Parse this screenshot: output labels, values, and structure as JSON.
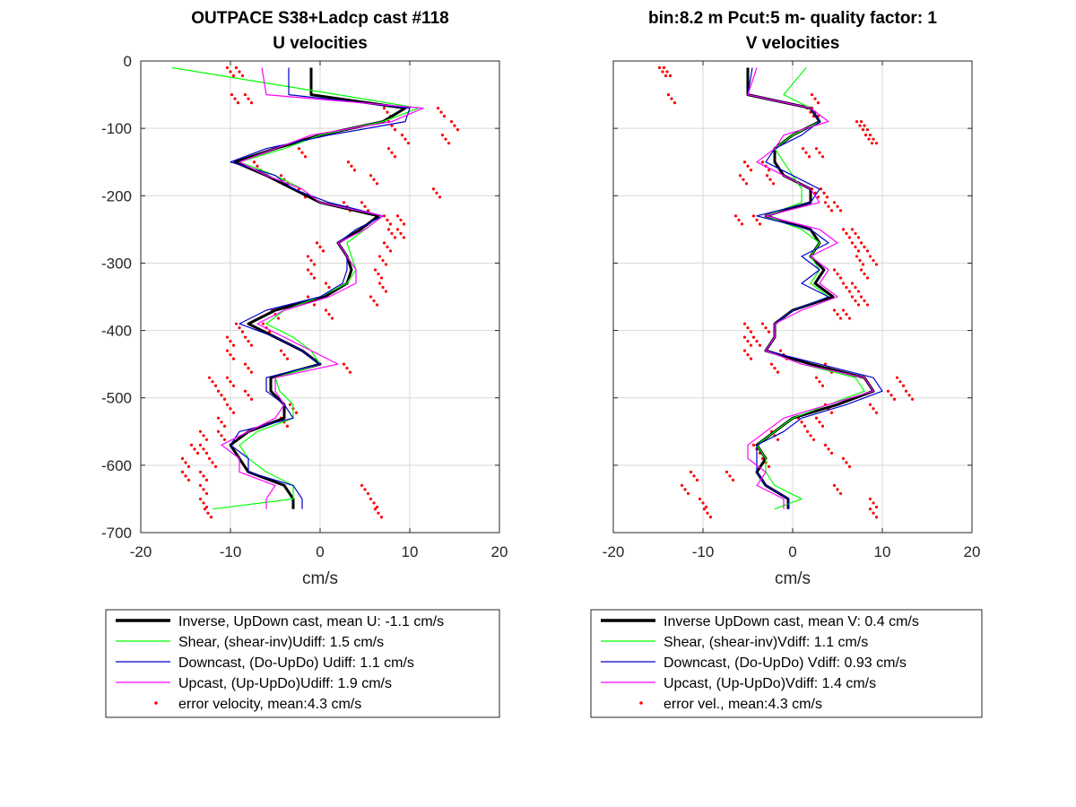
{
  "colors": {
    "inverse": "#000000",
    "shear": "#00ff00",
    "downcast": "#0000c8",
    "upcast": "#ff00ff",
    "error": "#ff0000",
    "grid": "#d9d9d9"
  },
  "chart_data": [
    {
      "type": "line",
      "title": "OUTPACE S38+Ladcp cast #118",
      "subtitle": "U velocities",
      "xlabel": "cm/s",
      "ylabel": "",
      "xlim": [
        -20,
        20
      ],
      "ylim": [
        -700,
        0
      ],
      "xticks": [
        "-20",
        "-10",
        "0",
        "10",
        "20"
      ],
      "yticks": [
        "0",
        "-100",
        "-200",
        "-300",
        "-400",
        "-500",
        "-600",
        "-700"
      ],
      "grid": true,
      "legend_position": "below",
      "depth": [
        -10,
        -50,
        -70,
        -90,
        -110,
        -130,
        -150,
        -170,
        -190,
        -210,
        -230,
        -250,
        -270,
        -290,
        -310,
        -330,
        -350,
        -370,
        -390,
        -410,
        -430,
        -450,
        -470,
        -490,
        -510,
        -530,
        -550,
        -570,
        -590,
        -610,
        -630,
        -650,
        -665
      ],
      "series": [
        {
          "name": "Inverse, UpDown cast, mean U:  -1.1 cm/s",
          "x": [
            -1,
            -1,
            9.5,
            7,
            0,
            -5,
            -9.5,
            -6,
            -3,
            0,
            6.5,
            4.5,
            2,
            3,
            3.5,
            3,
            0.5,
            -5,
            -8,
            -5,
            -2,
            0,
            -5.5,
            -5.5,
            -4,
            -4,
            -8,
            -10,
            -9,
            -8,
            -4,
            -3,
            -3
          ]
        },
        {
          "name": "Shear, (shear-inv)Udiff:  1.5 cm/s",
          "x": [
            -16.5,
            2,
            11,
            7,
            0,
            -4,
            -9,
            -5,
            -2,
            0,
            7,
            5,
            3,
            3.5,
            4,
            3,
            0,
            -4,
            -6,
            -3,
            -1,
            0,
            -5,
            -4.5,
            -3,
            -3,
            -7,
            -9,
            -8,
            -6,
            -3,
            -3,
            -12
          ]
        },
        {
          "name": "Downcast, (Do-UpDo) Udiff:  1.1 cm/s",
          "x": [
            -3.5,
            -3.5,
            10,
            9.5,
            1,
            -6,
            -10,
            -5,
            -3,
            1,
            7,
            4,
            2,
            3,
            3,
            2.5,
            0,
            -6,
            -9,
            -5,
            -2,
            0,
            -6,
            -6,
            -4,
            -3,
            -9,
            -10,
            -8,
            -8,
            -3,
            -2,
            -2
          ]
        },
        {
          "name": "Upcast, (Up-UpDo)Udiff:  1.9 cm/s",
          "x": [
            -6.5,
            -6,
            11.5,
            8,
            -1,
            -5,
            -9,
            -6,
            -2,
            0,
            7,
            5,
            2,
            3,
            4,
            4,
            1,
            -4,
            -7,
            -4,
            -1,
            2,
            -5,
            -5,
            -4,
            -5,
            -8,
            -11,
            -9,
            -9,
            -5,
            -6,
            -6
          ]
        }
      ],
      "error_velocity": {
        "name": "error velocity, mean:4.3 cm/s",
        "x": [
          -9,
          -8,
          7.5,
          8,
          9.5,
          8,
          3.5,
          6,
          13,
          5,
          7.5,
          9,
          7.5,
          7,
          6.5,
          7,
          6,
          1,
          -9,
          -8,
          -10,
          -8,
          -12,
          -11,
          -10,
          -11,
          -13,
          -13,
          -12,
          -13,
          -13,
          -13,
          -12.5
        ],
        "x2": [
          -10,
          -9.5,
          13.5,
          15,
          14,
          -2,
          -7,
          -4,
          -2,
          3,
          9,
          8,
          0,
          -1,
          -1,
          1,
          -1,
          -5,
          -6,
          -10,
          -4,
          3,
          -10,
          -8,
          -3,
          -4,
          -11,
          -14,
          -15,
          -15,
          5,
          6,
          6.5
        ]
      },
      "legend": [
        "Inverse, UpDown cast, mean U:  -1.1 cm/s",
        "Shear, (shear-inv)Udiff:  1.5 cm/s",
        "Downcast, (Do-UpDo) Udiff:  1.1 cm/s",
        "Upcast, (Up-UpDo)Udiff:  1.9 cm/s",
        "error velocity, mean:4.3 cm/s"
      ]
    },
    {
      "type": "line",
      "title": "bin:8.2 m  Pcut:5 m- quality factor:  1",
      "subtitle": "V velocities",
      "xlabel": "cm/s",
      "ylabel": "",
      "xlim": [
        -20,
        20
      ],
      "ylim": [
        -700,
        0
      ],
      "xticks": [
        "-20",
        "-10",
        "0",
        "10",
        "20"
      ],
      "yticks": [],
      "grid": true,
      "legend_position": "below",
      "depth": [
        -10,
        -50,
        -70,
        -90,
        -110,
        -130,
        -150,
        -170,
        -190,
        -210,
        -230,
        -250,
        -270,
        -290,
        -310,
        -330,
        -350,
        -370,
        -390,
        -410,
        -430,
        -450,
        -470,
        -490,
        -510,
        -530,
        -550,
        -570,
        -590,
        -610,
        -630,
        -650,
        -665
      ],
      "series": [
        {
          "name": "Inverse UpDown cast, mean V:  0.4 cm/s",
          "x": [
            -5,
            -5,
            2,
            3,
            0,
            -2,
            -2,
            -1,
            2,
            2,
            -3,
            2,
            3,
            2,
            3.5,
            2.5,
            4.5,
            0,
            -2,
            -2,
            -3,
            2,
            8,
            9,
            5,
            0,
            -2,
            -4,
            -3,
            -4,
            -3,
            -0.5,
            -0.5
          ]
        },
        {
          "name": "Shear, (shear-inv)Vdiff:  1.1 cm/s",
          "x": [
            1.5,
            -1,
            2,
            3,
            0,
            -2,
            -1,
            0,
            1,
            1,
            -3,
            1,
            3,
            2,
            3,
            2,
            4,
            0,
            -2,
            -2,
            -3,
            1,
            7,
            8,
            4,
            0,
            -2,
            -4,
            -3,
            -3,
            -2,
            1,
            -2
          ]
        },
        {
          "name": "Downcast, (Do-UpDo) Vdiff:  0.93 cm/s",
          "x": [
            -4.5,
            -5,
            2,
            3,
            1,
            -2,
            -3,
            0,
            3,
            2,
            -4,
            2,
            4,
            1,
            3,
            1,
            4,
            0,
            -2,
            -2,
            -3,
            3,
            9,
            10,
            6,
            1,
            -1,
            -4,
            -4,
            -4,
            -3,
            -0.5,
            -0.5
          ]
        },
        {
          "name": "Upcast, (Up-UpDo)Vdiff:  1.4 cm/s",
          "x": [
            -4,
            -5,
            2,
            4,
            -1,
            -2,
            -4,
            -1,
            2,
            3,
            -3,
            3,
            5,
            2,
            4,
            3,
            5,
            1,
            -2,
            -2,
            -3,
            1,
            8,
            9,
            4,
            -1,
            -3,
            -5,
            -5,
            -3,
            -4,
            -1,
            -1
          ]
        }
      ],
      "error_velocity": {
        "name": "error vel., mean:4.3 cm/s",
        "x": [
          -14,
          -13.5,
          2.5,
          7.5,
          8.5,
          3,
          -5,
          -5.5,
          2.5,
          4,
          -6,
          6,
          7,
          7.5,
          8,
          7,
          7,
          6,
          -5,
          -5,
          -5,
          -2,
          12,
          13,
          9,
          3,
          -2,
          -4,
          -3,
          -11,
          -12,
          -10,
          -9.5
        ],
        "x2": [
          -14.5,
          2.5,
          2,
          8,
          9,
          1.5,
          -3,
          -2.5,
          3.5,
          5,
          -4,
          7,
          8,
          9,
          5,
          6,
          8,
          5,
          -3,
          -4,
          -1,
          4,
          3,
          11,
          4,
          1,
          2,
          4,
          6,
          -7,
          5,
          9,
          9
        ]
      },
      "legend": [
        "Inverse UpDown cast, mean V:  0.4 cm/s",
        "Shear, (shear-inv)Vdiff:  1.1 cm/s",
        "Downcast, (Do-UpDo) Vdiff:  0.93 cm/s",
        "Upcast, (Up-UpDo)Vdiff:  1.4 cm/s",
        "error vel., mean:4.3 cm/s"
      ]
    }
  ]
}
